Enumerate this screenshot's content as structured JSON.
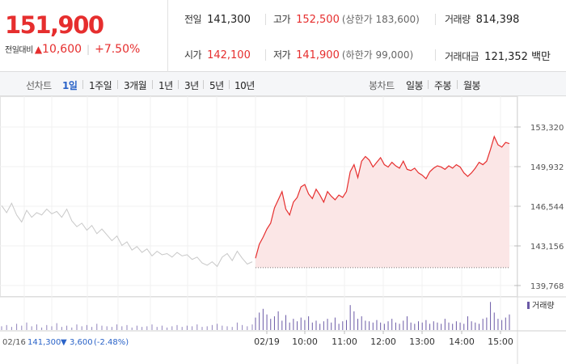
{
  "quote": {
    "price": "151,900",
    "change_label": "전일대비",
    "change_arrow": "▲",
    "change_amount": "10,600",
    "change_pct": "+7.50%",
    "prev_close": {
      "label": "전일",
      "value": "141,300"
    },
    "open": {
      "label": "시가",
      "value": "142,100"
    },
    "high": {
      "label": "고가",
      "value": "152,500",
      "limit": "(상한가 183,600)"
    },
    "low": {
      "label": "저가",
      "value": "141,900",
      "limit": "(하한가 99,000)"
    },
    "volume": {
      "label": "거래량",
      "value": "814,398"
    },
    "amount": {
      "label": "거래대금",
      "value": "121,352 백만"
    },
    "up_color": "#e62e2e"
  },
  "tabs": {
    "line_label": "선차트",
    "periods": [
      "1일",
      "1주일",
      "3개월",
      "1년",
      "3년",
      "5년",
      "10년"
    ],
    "active_period": "1일",
    "candle_label": "봉차트",
    "candles": [
      "일봉",
      "주봉",
      "월봉"
    ]
  },
  "chart_data": {
    "type": "line",
    "y_ticks": [
      "153,320",
      "149,932",
      "146,544",
      "143,156",
      "139,768"
    ],
    "ylim": [
      139768,
      153320
    ],
    "x_ticks": [
      "02/19",
      "10:00",
      "11:00",
      "12:00",
      "13:00",
      "14:00",
      "15:00"
    ],
    "prev_day": {
      "date": "02/16",
      "close": "141,300",
      "change_arrow": "▼",
      "change": "3,600",
      "change_pct": "(-2.48%)",
      "values": [
        146600,
        146000,
        146800,
        145800,
        145200,
        146200,
        145600,
        146000,
        145800,
        146300,
        145900,
        146100,
        145600,
        146300,
        145300,
        144800,
        145100,
        144500,
        144900,
        144200,
        144600,
        144100,
        143600,
        144000,
        143200,
        143500,
        142800,
        143100,
        142600,
        142900,
        142300,
        142700,
        142400,
        142500,
        142200,
        142600,
        142300,
        142400,
        142000,
        142200,
        141700,
        141500,
        141800,
        141400,
        142200,
        142500,
        141900,
        142700,
        142100,
        141600,
        141800
      ]
    },
    "today": {
      "date": "02/19",
      "baseline": 141300,
      "values": [
        142100,
        143300,
        143900,
        144600,
        145100,
        146400,
        147100,
        147800,
        146300,
        145800,
        146900,
        147300,
        148200,
        148400,
        147600,
        147200,
        148000,
        147500,
        146900,
        147800,
        147400,
        147100,
        147500,
        147300,
        147800,
        149500,
        150100,
        149000,
        150400,
        150800,
        150500,
        149900,
        150300,
        150700,
        150100,
        149900,
        150300,
        150000,
        149800,
        150400,
        149700,
        149600,
        149800,
        149400,
        149200,
        148900,
        149500,
        149800,
        150000,
        149900,
        149700,
        150000,
        149800,
        150100,
        149900,
        149400,
        149100,
        149400,
        149800,
        150300,
        150100,
        150400,
        151400,
        152500,
        151800,
        151600,
        152000,
        151900
      ]
    },
    "volume": {
      "label": "거래량",
      "prev_day": [
        6,
        8,
        5,
        10,
        7,
        12,
        6,
        9,
        4,
        8,
        6,
        11,
        5,
        7,
        4,
        9,
        6,
        8,
        5,
        10,
        7,
        6,
        5,
        9,
        6,
        8,
        4,
        7,
        5,
        6,
        9,
        5,
        7,
        4,
        6,
        8,
        5,
        7,
        6,
        9,
        5,
        6,
        8,
        10,
        7,
        6,
        5,
        12,
        8,
        6,
        9
      ],
      "today": [
        20,
        28,
        34,
        25,
        18,
        22,
        30,
        15,
        24,
        12,
        18,
        14,
        20,
        16,
        22,
        12,
        15,
        10,
        14,
        18,
        12,
        20,
        10,
        14,
        16,
        40,
        30,
        18,
        22,
        15,
        14,
        12,
        16,
        12,
        10,
        14,
        18,
        12,
        10,
        15,
        22,
        12,
        10,
        14,
        12,
        16,
        10,
        14,
        12,
        10,
        18,
        12,
        10,
        14,
        12,
        10,
        22,
        14,
        12,
        10,
        18,
        20,
        45,
        28,
        18,
        16,
        20,
        25
      ]
    },
    "colors": {
      "today_line": "#e62e2e",
      "today_fill": "#fbe6e6",
      "prev_line": "#c8c8c8",
      "volume": "#6b5aa6",
      "blue": "#2a63c8"
    }
  }
}
